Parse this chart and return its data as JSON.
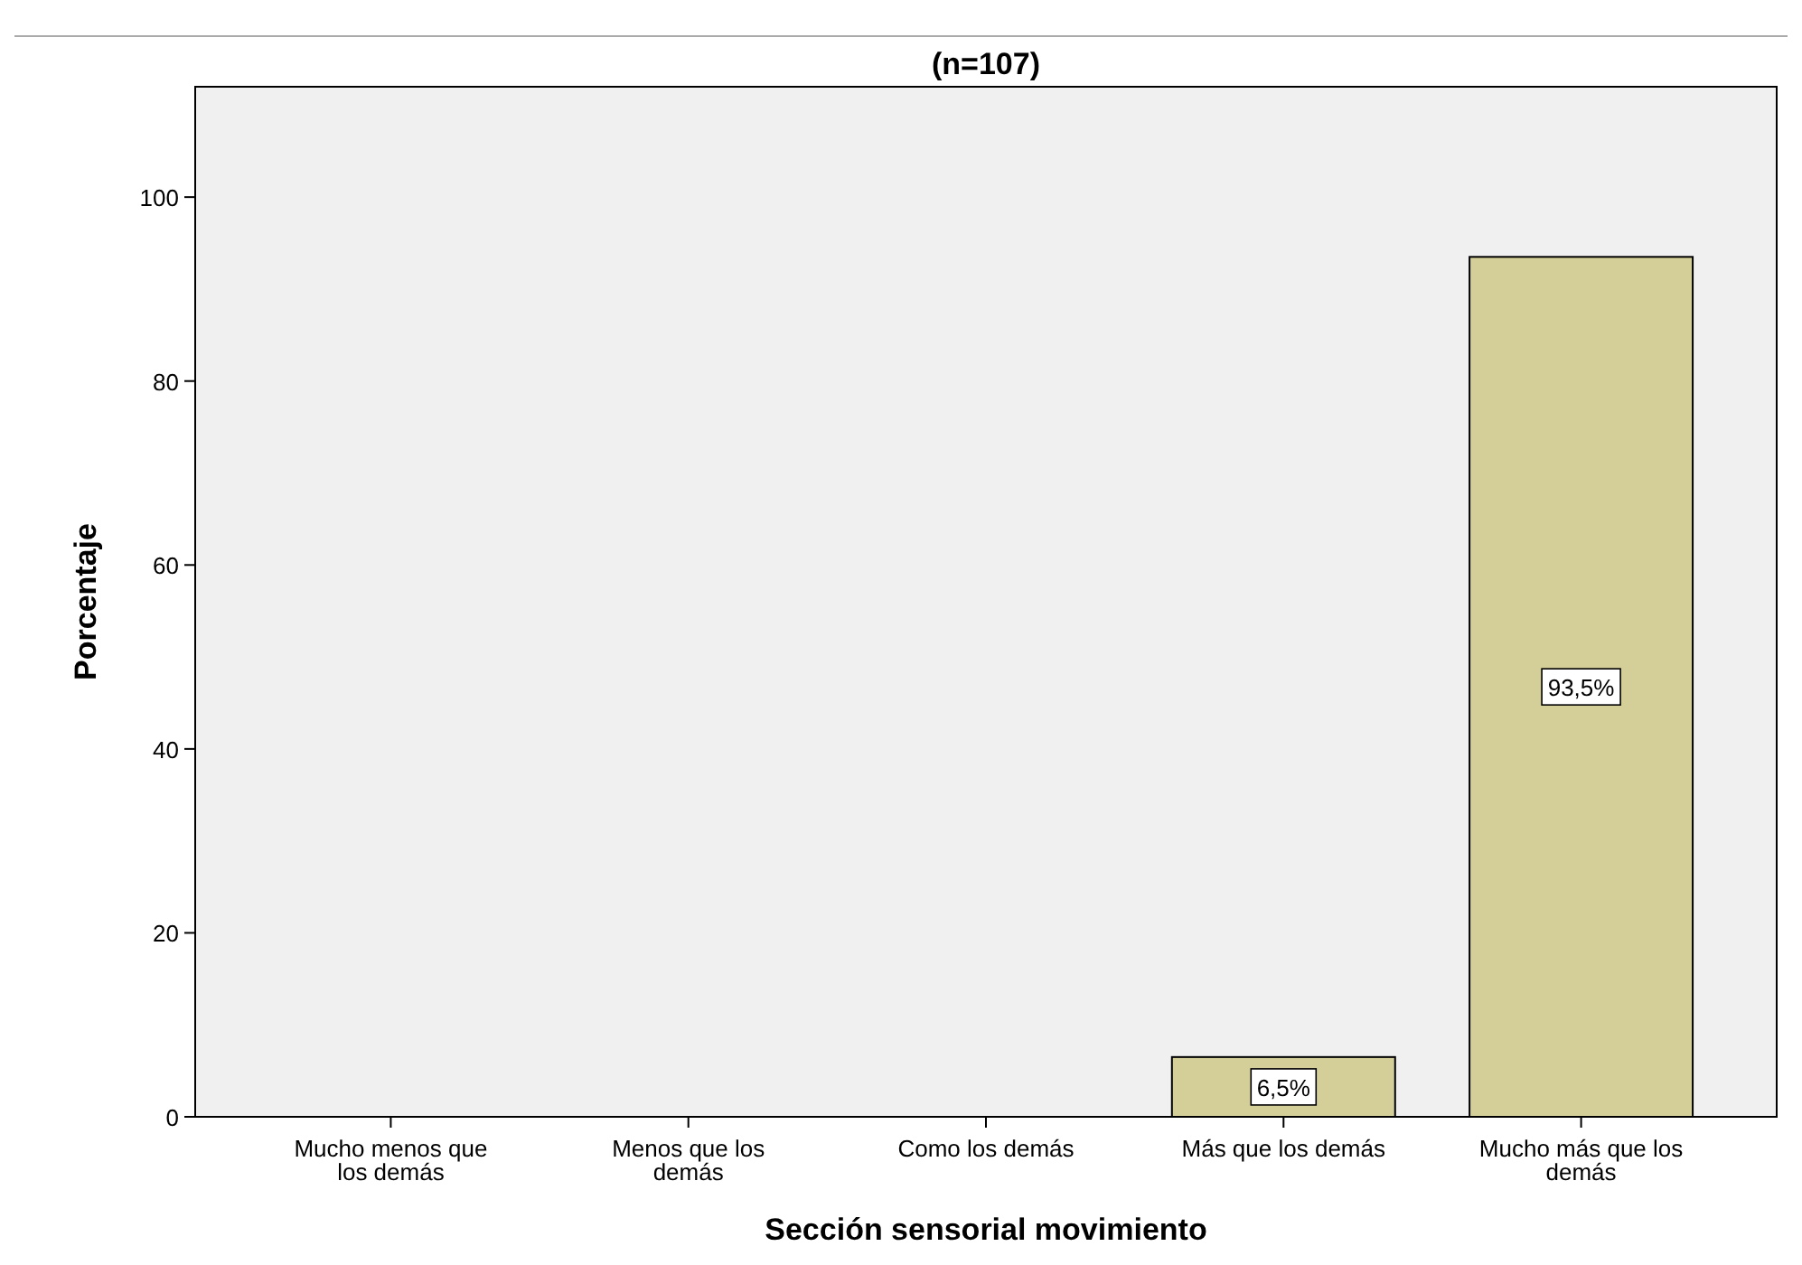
{
  "chart_data": {
    "type": "bar",
    "title": "(n=107)",
    "xlabel": "Sección sensorial movimiento",
    "ylabel": "Porcentaje",
    "categories": [
      "Mucho menos que los demás",
      "Menos que los demás",
      "Como los demás",
      "Más que los demás",
      "Mucho más que los demás"
    ],
    "values": [
      0,
      0,
      0,
      6.5,
      93.5
    ],
    "color": "#d4cf99",
    "value_labels": [
      null,
      null,
      null,
      "6,5%",
      "93,5%"
    ],
    "ylim": [
      0,
      112
    ],
    "yticks": [
      0,
      20,
      40,
      60,
      80,
      100
    ],
    "grid": false
  }
}
